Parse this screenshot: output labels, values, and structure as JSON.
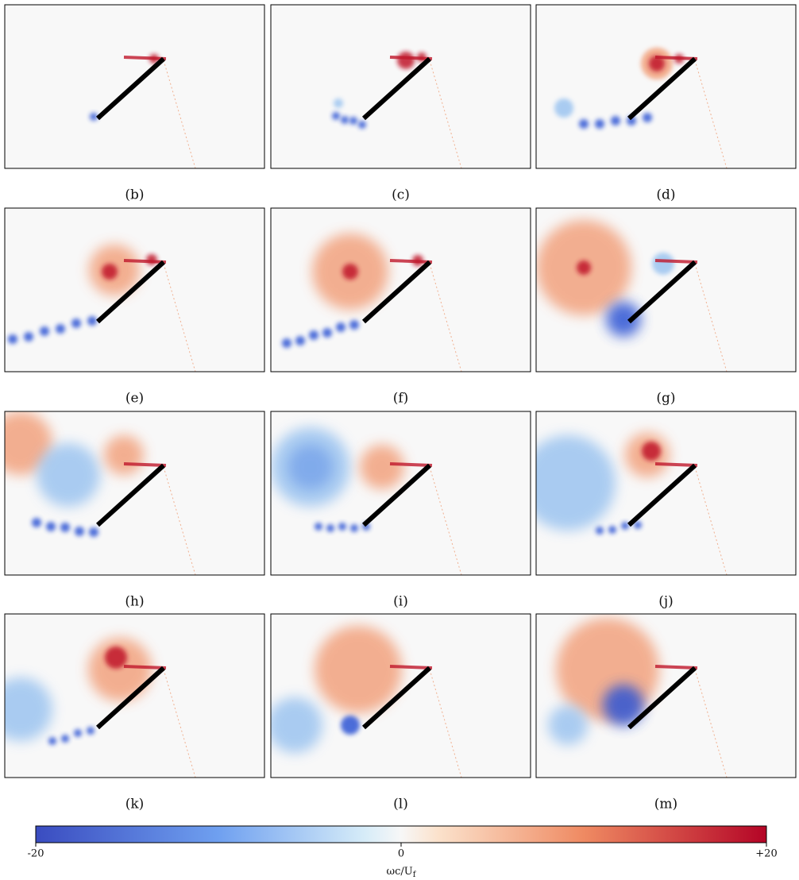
{
  "panels": [
    "(b)",
    "(c)",
    "(d)",
    "(e)",
    "(f)",
    "(g)",
    "(h)",
    "(i)",
    "(j)",
    "(k)",
    "(l)",
    "(m)"
  ],
  "colorbar": {
    "lim": [
      -20,
      20
    ],
    "ticks": [
      -20,
      0,
      {
        "value": 20,
        "label": "+20"
      }
    ],
    "label": "ωc/U",
    "label_subscript": "f"
  }
}
